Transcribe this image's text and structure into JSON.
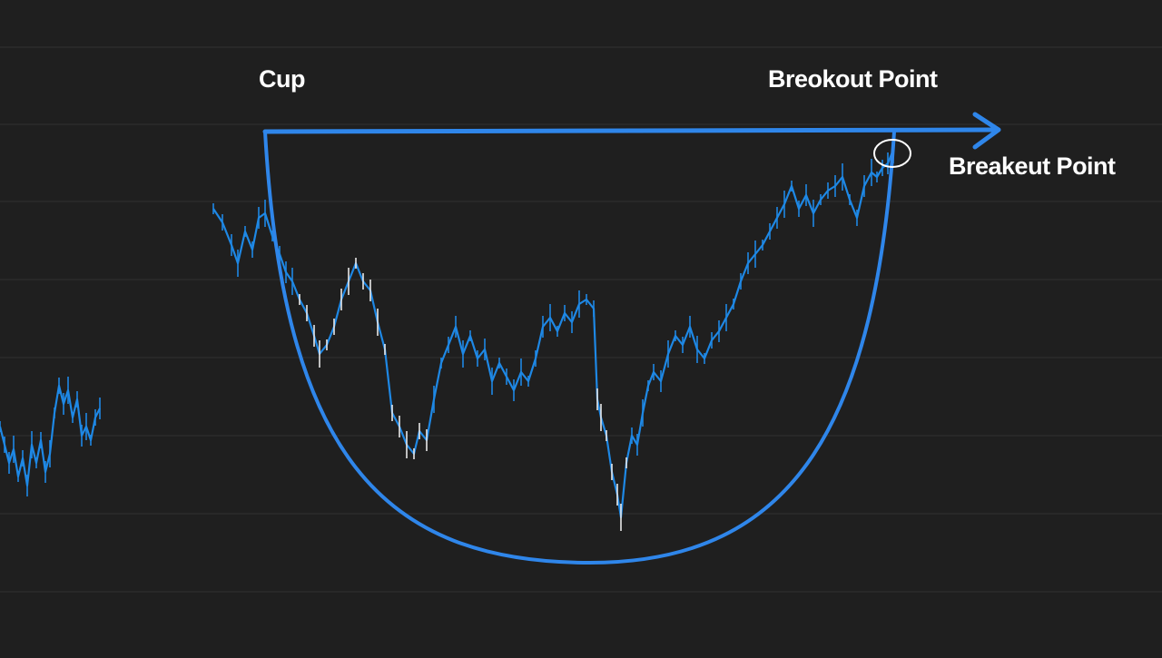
{
  "chart_data": {
    "type": "line",
    "title": "",
    "xlabel": "",
    "ylabel": "",
    "grid": true,
    "ylim": [
      0,
      100
    ],
    "xlim": [
      0,
      1280
    ],
    "annotations": {
      "cup_label": "Cup",
      "breakout_label_top": "Breokout Point",
      "breakout_label_right": "Breakeut Point"
    },
    "series": [
      {
        "segment": "left",
        "x": [
          0,
          5,
          10,
          15,
          20,
          25,
          30,
          35,
          40,
          45,
          50,
          55,
          60,
          65,
          70,
          75,
          80,
          85,
          90,
          95,
          100,
          105,
          110
        ],
        "values": [
          30,
          26,
          22,
          25,
          19,
          23,
          17,
          26,
          22,
          27,
          20,
          24,
          33,
          39,
          35,
          38,
          32,
          36,
          28,
          30,
          27,
          32,
          34
        ]
      },
      {
        "segment": "main",
        "x": [
          235,
          245,
          255,
          262,
          270,
          278,
          285,
          292,
          300,
          308,
          315,
          322,
          330,
          338,
          346,
          352,
          360,
          368,
          376,
          384,
          392,
          400,
          408,
          416,
          424,
          432,
          440,
          448,
          456,
          462,
          470,
          478,
          486,
          494,
          502,
          510,
          518,
          526,
          534,
          542,
          550,
          558,
          566,
          574,
          582,
          590,
          598,
          606,
          614,
          622,
          630,
          638,
          646,
          654,
          658,
          662,
          668,
          674,
          680,
          684,
          690,
          696,
          702,
          708,
          714,
          720,
          728,
          736,
          744,
          752,
          760,
          768,
          776,
          784,
          792,
          800,
          808,
          816,
          824,
          832,
          840,
          848,
          856,
          864,
          872,
          880,
          888,
          896,
          904,
          912,
          920,
          928,
          936,
          944,
          952,
          960,
          966,
          972,
          978,
          984
        ],
        "values": [
          78,
          75,
          70,
          66,
          73,
          69,
          76,
          77,
          72,
          68,
          64,
          62,
          58,
          55,
          50,
          46,
          48,
          52,
          58,
          62,
          66,
          62,
          60,
          53,
          47,
          33,
          30,
          26,
          24,
          29,
          27,
          36,
          44,
          48,
          52,
          46,
          50,
          45,
          47,
          40,
          44,
          41,
          38,
          42,
          40,
          45,
          52,
          54,
          51,
          55,
          53,
          57,
          58,
          56,
          36,
          32,
          28,
          20,
          15,
          10,
          22,
          28,
          26,
          33,
          39,
          42,
          40,
          46,
          50,
          48,
          52,
          47,
          45,
          49,
          51,
          54,
          57,
          62,
          66,
          68,
          70,
          73,
          76,
          79,
          83,
          78,
          81,
          77,
          80,
          82,
          83,
          85,
          80,
          76,
          83,
          86,
          85,
          87,
          88,
          91
        ]
      }
    ],
    "cup_curve": {
      "left": [
        292,
        95
      ],
      "bottom": [
        650,
        0
      ],
      "right": [
        985,
        95
      ]
    },
    "resistance": {
      "y": 95,
      "x_start": 292,
      "x_end": 1100
    },
    "breakout_point": {
      "x": 983,
      "y": 91
    },
    "colors": {
      "background": "#1f1f1f",
      "grid": "#2e2e2e",
      "line": "#1e88e5",
      "accent": "#2f86ea",
      "label": "#ffffff",
      "highlight": "#ffffff"
    }
  }
}
